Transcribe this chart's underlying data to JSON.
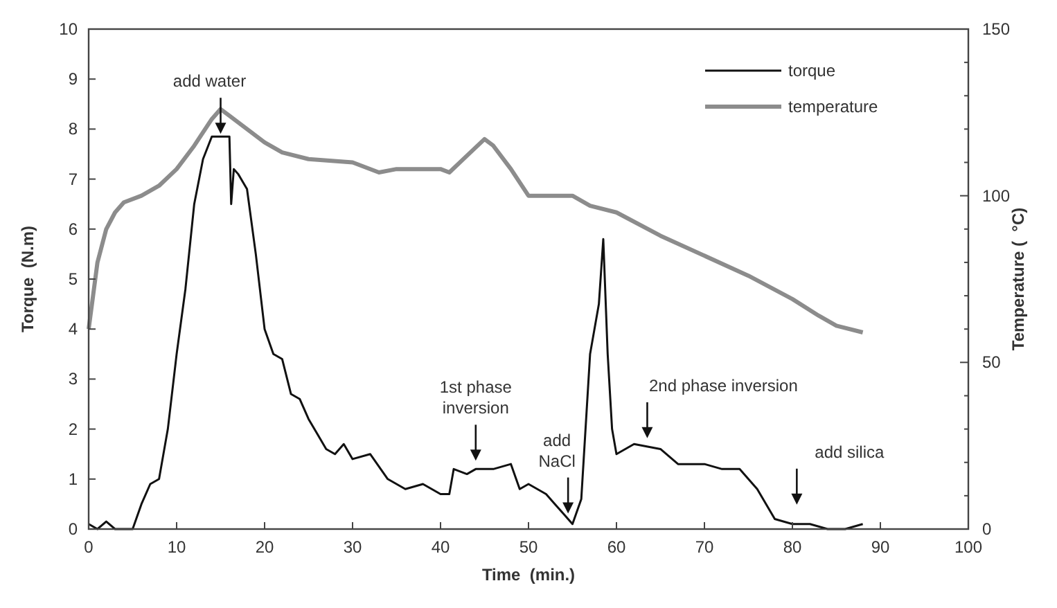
{
  "chart_data": {
    "type": "line",
    "xlabel": "Time  (min.)",
    "ylabel": "Torque  (N.m)",
    "y2label": "Temperature (  °C)",
    "xlim": [
      0,
      100
    ],
    "xticks": [
      0,
      10,
      20,
      30,
      40,
      50,
      60,
      70,
      80,
      90,
      100
    ],
    "ylim": [
      0,
      10
    ],
    "yticks": [
      0,
      1,
      2,
      3,
      4,
      5,
      6,
      7,
      8,
      9,
      10
    ],
    "y2lim": [
      0,
      150
    ],
    "y2ticks": [
      0,
      {
        "value": 10,
        "label": null
      },
      {
        "value": 20,
        "label": null
      },
      {
        "value": 30,
        "label": null
      },
      {
        "value": 40,
        "label": null
      },
      50,
      {
        "value": 60,
        "label": null
      },
      {
        "value": 70,
        "label": null
      },
      {
        "value": 80,
        "label": null
      },
      {
        "value": 90,
        "label": null
      },
      100,
      {
        "value": 110,
        "label": null
      },
      {
        "value": 120,
        "label": null
      },
      {
        "value": 130,
        "label": null
      },
      {
        "value": 140,
        "label": null
      },
      150
    ],
    "grid": false,
    "legend": "top right",
    "marker": "none",
    "line_style": "solid",
    "series": [
      {
        "name": "torque",
        "color": "#111111",
        "x": [
          0,
          1,
          2,
          3,
          4,
          5,
          6,
          7,
          8,
          9,
          10,
          11,
          12,
          13,
          14,
          16,
          16.2,
          16.5,
          17,
          18,
          19,
          20,
          21,
          22,
          23,
          24,
          25,
          26,
          27,
          28,
          29,
          30,
          32,
          34,
          36,
          38,
          40,
          41,
          41.5,
          43,
          44,
          46,
          48,
          49,
          50,
          52,
          53,
          54,
          55,
          56,
          57,
          58,
          58.5,
          59,
          59.5,
          60,
          62,
          65,
          67,
          70,
          72,
          74,
          76,
          78,
          80,
          82,
          84,
          86,
          88
        ],
        "values": [
          0.1,
          0,
          0.15,
          0,
          0,
          0,
          0.5,
          0.9,
          1,
          2,
          3.5,
          4.8,
          6.5,
          7.4,
          7.85,
          7.85,
          6.5,
          7.2,
          7.1,
          6.8,
          5.5,
          4,
          3.5,
          3.4,
          2.7,
          2.6,
          2.2,
          1.9,
          1.6,
          1.5,
          1.7,
          1.4,
          1.5,
          1,
          0.8,
          0.9,
          0.7,
          0.7,
          1.2,
          1.1,
          1.2,
          1.2,
          1.3,
          0.8,
          0.9,
          0.7,
          0.5,
          0.3,
          0.1,
          0.6,
          3.5,
          4.5,
          5.8,
          3.5,
          2,
          1.5,
          1.7,
          1.6,
          1.3,
          1.3,
          1.2,
          1.2,
          0.8,
          0.2,
          0.1,
          0.1,
          0,
          0,
          0.1
        ]
      },
      {
        "name": "temperature",
        "color": "#8c8c8c",
        "axis": "y2",
        "x": [
          0,
          0.5,
          1,
          2,
          3,
          4,
          6,
          8,
          10,
          12,
          14,
          15,
          16,
          18,
          20,
          22,
          25,
          30,
          33,
          35,
          40,
          41,
          43,
          45,
          46,
          48,
          50,
          52,
          55,
          57,
          60,
          65,
          70,
          75,
          80,
          83,
          85,
          88
        ],
        "values": [
          60,
          70,
          80,
          90,
          95,
          98,
          100,
          103,
          108,
          115,
          123,
          126,
          124,
          120,
          116,
          113,
          111,
          110,
          107,
          108,
          108,
          107,
          112,
          117,
          115,
          108,
          100,
          100,
          100,
          97,
          95,
          88,
          82,
          76,
          69,
          64,
          61,
          59
        ]
      }
    ],
    "annotations": [
      {
        "text": "add water",
        "x": 15,
        "y": 7.85
      },
      "1st phase\ninversion",
      {
        "text": "add\nNaCl",
        "x": 54.5,
        "y": 0.2
      },
      "2nd phase inversion",
      "add silica"
    ]
  }
}
